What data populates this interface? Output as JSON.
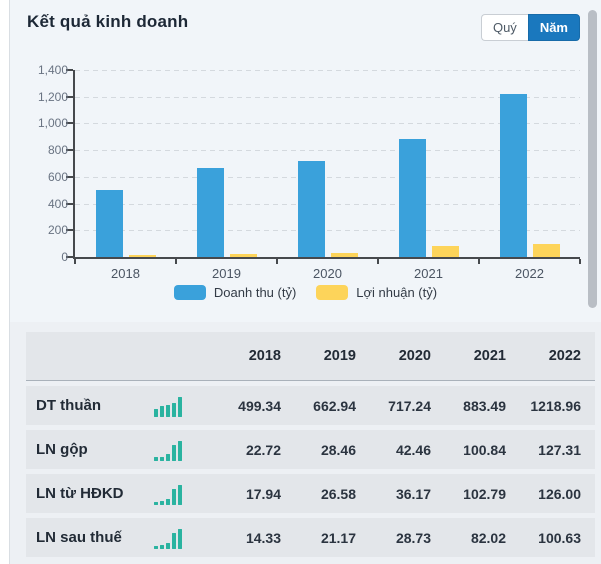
{
  "header": {
    "title": "Kết quả kinh doanh",
    "period_buttons": [
      {
        "label": "Quý",
        "active": false
      },
      {
        "label": "Năm",
        "active": true
      }
    ]
  },
  "colors": {
    "revenue_blue": "#3aa1db",
    "profit_yellow": "#fdd45a",
    "active_button_blue": "#1a78be",
    "sparkline_teal": "#2ab3a0"
  },
  "chart_data": {
    "type": "bar",
    "categories": [
      "2018",
      "2019",
      "2020",
      "2021",
      "2022"
    ],
    "series": [
      {
        "name": "Doanh thu (tỷ)",
        "color": "#3aa1db",
        "values": [
          499.34,
          662.94,
          717.24,
          883.49,
          1218.96
        ]
      },
      {
        "name": "Lợi nhuận (tỷ)",
        "color": "#fdd45a",
        "values": [
          14.33,
          21.17,
          28.73,
          82.02,
          100.63
        ]
      }
    ],
    "title": "",
    "xlabel": "",
    "ylabel": "",
    "ylim": [
      0,
      1400
    ],
    "ytick_step": 200,
    "grid": "horizontal-dashed",
    "legend_position": "bottom"
  },
  "table": {
    "columns": [
      "2018",
      "2019",
      "2020",
      "2021",
      "2022"
    ],
    "rows": [
      {
        "label": "DT thuần",
        "icon": "mini-bar-chart-icon",
        "values": [
          "499.34",
          "662.94",
          "717.24",
          "883.49",
          "1218.96"
        ]
      },
      {
        "label": "LN gộp",
        "icon": "mini-bar-chart-icon",
        "values": [
          "22.72",
          "28.46",
          "42.46",
          "100.84",
          "127.31"
        ]
      },
      {
        "label": "LN từ HĐKD",
        "icon": "mini-bar-chart-icon",
        "values": [
          "17.94",
          "26.58",
          "36.17",
          "102.79",
          "126.00"
        ]
      },
      {
        "label": "LN sau thuế",
        "icon": "mini-bar-chart-icon",
        "values": [
          "14.33",
          "21.17",
          "28.73",
          "82.02",
          "100.63"
        ]
      }
    ]
  }
}
